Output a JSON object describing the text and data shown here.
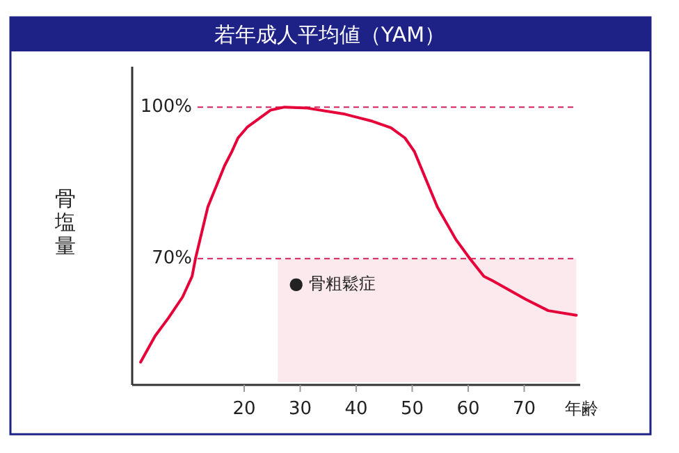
{
  "chart_data": {
    "type": "line",
    "title": "若年成人平均値（YAM）",
    "ylabel": "骨塩量",
    "xlabel": "年齢",
    "x": [
      1.5,
      4.1,
      6.5,
      9.0,
      10.7,
      11.3,
      13.5,
      16.5,
      17.8,
      18.9,
      20.6,
      24.7,
      27.2,
      31.3,
      38,
      42.9,
      46.2,
      48.7,
      50.4,
      54.5,
      57.8,
      60.3,
      62.8,
      64.4,
      70.2,
      74.3,
      79.3
    ],
    "values": [
      49.5,
      54.7,
      58.3,
      62.4,
      66.5,
      70,
      80.2,
      88.4,
      91.2,
      93.9,
      96.1,
      99.4,
      100,
      99.8,
      98.6,
      97.2,
      95.9,
      93.9,
      91.2,
      80.2,
      73.8,
      70,
      66.5,
      65.6,
      62,
      59.7,
      58.8
    ],
    "color": "#e60039",
    "xlim": [
      0,
      80
    ],
    "ylim": [
      45,
      108
    ],
    "xticks": [
      20,
      30,
      40,
      50,
      60,
      70
    ],
    "yticks": [
      {
        "value": 100,
        "label": "100%"
      },
      {
        "value": 70,
        "label": "70%"
      }
    ],
    "ref_lines": [
      {
        "axis": "y",
        "value": 100,
        "color": "#d4205a",
        "line_style": "dashed"
      },
      {
        "axis": "y",
        "value": 70,
        "color": "#d4205a",
        "line_style": "dashed"
      }
    ],
    "bands": [
      {
        "axis": "x",
        "from": 26,
        "to": 79.3,
        "label": "● 骨粗鬆症",
        "color": "#fce9ed"
      }
    ]
  }
}
